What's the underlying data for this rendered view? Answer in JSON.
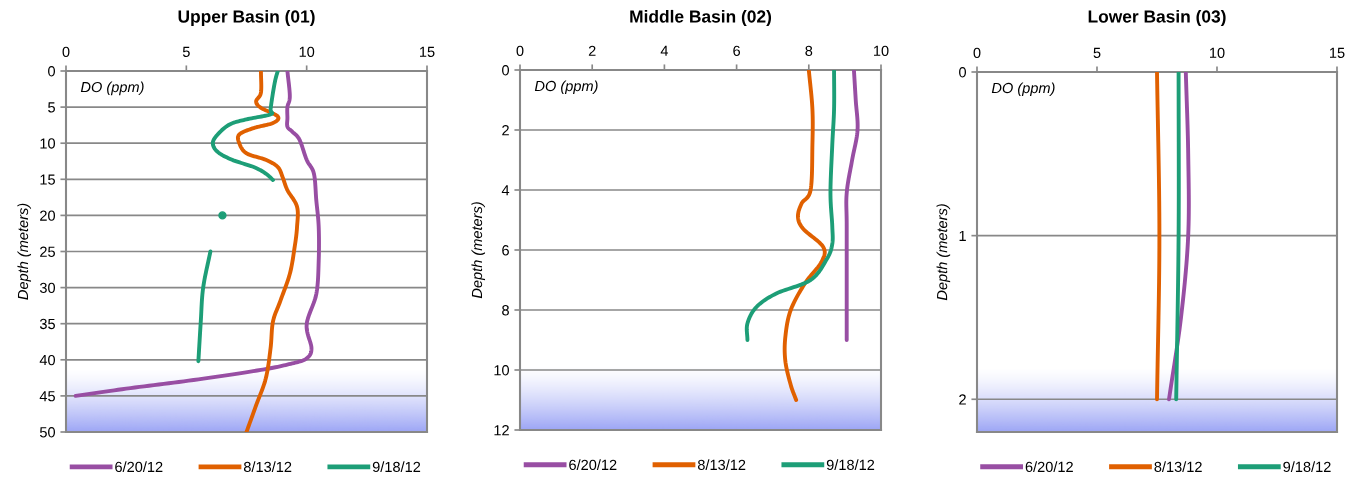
{
  "chart_data": [
    {
      "type": "line",
      "title": "Upper Basin (01)",
      "xlabel": "DO (ppm)",
      "ylabel": "Depth (meters)",
      "xlim": [
        0,
        15
      ],
      "xticks": [
        0,
        5,
        10,
        15
      ],
      "ylim": [
        50,
        0
      ],
      "yticks": [
        0,
        5,
        10,
        15,
        20,
        25,
        30,
        35,
        40,
        45,
        50
      ],
      "grid": "y",
      "legend": "bottom",
      "bands": [
        {
          "axis": "y",
          "from": 41,
          "to": 50,
          "color": "#9da6f5"
        }
      ],
      "series": [
        {
          "name": "6/20/12",
          "color": "#984ea3",
          "x": [
            9.2,
            9.3,
            9.2,
            9.2,
            9.2,
            9.4,
            9.7,
            10.0,
            10.3,
            10.4,
            10.5,
            10.5,
            10.4,
            10.0,
            10.2,
            10.0,
            9.4,
            8.1,
            5.3,
            2.5,
            0.4
          ],
          "values": [
            0,
            3.5,
            5,
            6.5,
            7.7,
            8.4,
            9.5,
            12.3,
            14.2,
            17.9,
            21.6,
            26.3,
            30.9,
            35.1,
            38.4,
            39.8,
            40.5,
            41.4,
            42.8,
            44,
            45
          ]
        },
        {
          "name": "8/13/12",
          "color": "#e06000",
          "x": [
            8.1,
            8.1,
            7.9,
            8.1,
            8.8,
            8.6,
            7.8,
            7.2,
            7.2,
            7.5,
            8.3,
            8.8,
            9.0,
            9.2,
            9.6,
            9.6,
            9.5,
            9.3,
            8.9,
            8.6,
            8.5,
            8.3,
            7.9,
            7.5
          ],
          "values": [
            0,
            3,
            4.2,
            5.1,
            6.3,
            7.2,
            7.9,
            8.8,
            10,
            11.4,
            12.3,
            13.3,
            14.7,
            16.5,
            18.8,
            21.6,
            24.4,
            28.1,
            31.9,
            34.7,
            38.4,
            42.6,
            46.3,
            50
          ]
        },
        {
          "name": "9/18/12",
          "color": "#1d9e77",
          "x": [
            8.8,
            8.7,
            8.6,
            8.5,
            8.5,
            7.5,
            6.8,
            6.3,
            6.1,
            6.3,
            6.9,
            7.8,
            8.3,
            8.6,
            null,
            6.5,
            null,
            6.0,
            5.7,
            5.6,
            5.5
          ],
          "values": [
            0,
            1.2,
            3,
            5.3,
            6,
            6.7,
            7.4,
            8.8,
            10,
            11.2,
            12.3,
            13.3,
            14.2,
            15.1,
            null,
            20,
            null,
            25,
            30,
            34.7,
            40.2
          ]
        }
      ]
    },
    {
      "type": "line",
      "title": "Middle Basin (02)",
      "xlabel": "DO (ppm)",
      "ylabel": "Depth (meters)",
      "xlim": [
        0,
        10
      ],
      "xticks": [
        0,
        2,
        4,
        6,
        8,
        10
      ],
      "ylim": [
        12,
        0
      ],
      "yticks": [
        0,
        2,
        4,
        6,
        8,
        10,
        12
      ],
      "grid": "y",
      "legend": "bottom",
      "bands": [
        {
          "axis": "y",
          "from": 9.8,
          "to": 12,
          "color": "#9da6f5"
        }
      ],
      "series": [
        {
          "name": "6/20/12",
          "color": "#984ea3",
          "x": [
            9.25,
            9.3,
            9.35,
            9.2,
            9.05,
            9.05,
            9.05,
            9.05
          ],
          "values": [
            0,
            1,
            2,
            3,
            4.1,
            5.2,
            7.5,
            9
          ]
        },
        {
          "name": "8/13/12",
          "color": "#e06000",
          "x": [
            8.0,
            8.1,
            8.1,
            8.05,
            7.8,
            7.7,
            7.85,
            8.4,
            8.35,
            7.9,
            7.5,
            7.35,
            7.35,
            7.5,
            7.65
          ],
          "values": [
            0,
            1.3,
            2.5,
            4,
            4.45,
            4.9,
            5.3,
            5.9,
            6.4,
            7.1,
            8,
            8.9,
            9.7,
            10.5,
            11
          ]
        },
        {
          "name": "9/18/12",
          "color": "#1d9e77",
          "x": [
            8.7,
            8.7,
            8.65,
            8.6,
            8.65,
            8.65,
            8.5,
            8.05,
            7.1,
            6.55,
            6.3,
            6.3
          ],
          "values": [
            0,
            1.3,
            2.5,
            4.1,
            5.2,
            5.8,
            6.3,
            7,
            7.45,
            7.9,
            8.45,
            9
          ]
        }
      ]
    },
    {
      "type": "line",
      "title": "Lower Basin (03)",
      "xlabel": "DO (ppm)",
      "ylabel": "Depth (meters)",
      "xlim": [
        0,
        15
      ],
      "xticks": [
        0,
        5,
        10,
        15
      ],
      "ylim": [
        2.2,
        0
      ],
      "yticks": [
        0,
        1,
        2
      ],
      "grid": "y",
      "legend": "bottom",
      "bands": [
        {
          "axis": "y",
          "from": 1.8,
          "to": 2.2,
          "color": "#9da6f5"
        }
      ],
      "series": [
        {
          "name": "6/20/12",
          "color": "#984ea3",
          "x": [
            8.7,
            8.8,
            8.8,
            8.5,
            8.0
          ],
          "values": [
            0,
            0.5,
            1,
            1.5,
            2
          ]
        },
        {
          "name": "8/13/12",
          "color": "#e06000",
          "x": [
            7.5,
            7.6,
            7.5
          ],
          "values": [
            0,
            1,
            2
          ]
        },
        {
          "name": "9/18/12",
          "color": "#1d9e77",
          "x": [
            8.4,
            8.4,
            8.3
          ],
          "values": [
            0,
            1,
            2
          ]
        }
      ]
    }
  ]
}
